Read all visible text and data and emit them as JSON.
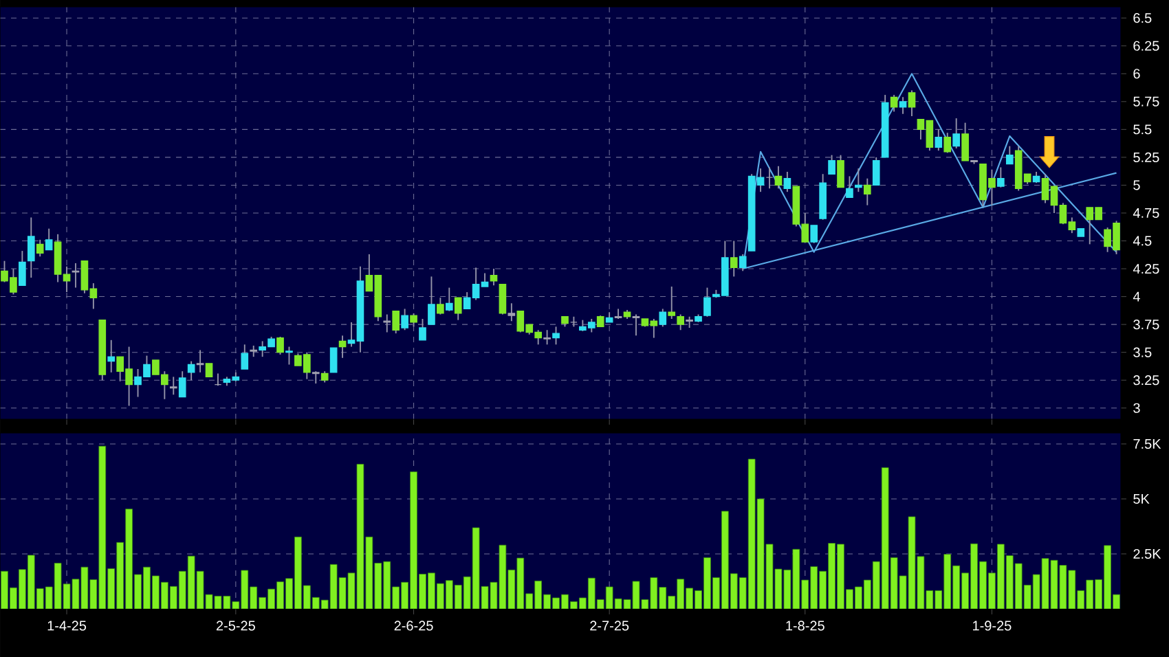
{
  "chart_data": [
    {
      "type": "candlestick",
      "categories": [
        null,
        null,
        null,
        null,
        null,
        null,
        null,
        null,
        null,
        null,
        null,
        null,
        null,
        null,
        null,
        null,
        null,
        null,
        null,
        null,
        null,
        null,
        null,
        null,
        null,
        null,
        null,
        null,
        null,
        null,
        null,
        null,
        null,
        null,
        null,
        null,
        null,
        null,
        null,
        null,
        null,
        null,
        null,
        null,
        null,
        null,
        null,
        null,
        null,
        null,
        null,
        null,
        null,
        null,
        null,
        null,
        null,
        null,
        null,
        null,
        null,
        null,
        null,
        null,
        null,
        null,
        null,
        null,
        null,
        null,
        null,
        null,
        null,
        null,
        null,
        null,
        null,
        null,
        null,
        null,
        null,
        null,
        null,
        null,
        null,
        null,
        null,
        null,
        null,
        null,
        null,
        null,
        null,
        null,
        null,
        null,
        null,
        null,
        null,
        null,
        null,
        null,
        null,
        null,
        null,
        null,
        null,
        null,
        null,
        null,
        null,
        null,
        null,
        null,
        null,
        null,
        null,
        null,
        null,
        null,
        null,
        null,
        null,
        null,
        null,
        null
      ],
      "ohlc": [
        [
          4.23,
          4.32,
          4.13,
          4.14
        ],
        [
          4.17,
          4.25,
          4.02,
          4.04
        ],
        [
          4.1,
          4.41,
          4.1,
          4.31
        ],
        [
          4.32,
          4.71,
          4.17,
          4.54
        ],
        [
          4.47,
          4.51,
          4.36,
          4.39
        ],
        [
          4.42,
          4.61,
          4.42,
          4.51
        ],
        [
          4.49,
          4.56,
          4.13,
          4.2
        ],
        [
          4.2,
          4.27,
          4.04,
          4.14
        ],
        [
          4.23,
          4.3,
          4.08,
          4.22
        ],
        [
          4.32,
          4.32,
          4.03,
          4.06
        ],
        [
          4.07,
          4.12,
          3.89,
          3.99
        ],
        [
          3.79,
          3.79,
          3.25,
          3.3
        ],
        [
          3.42,
          3.61,
          3.32,
          3.46
        ],
        [
          3.46,
          3.46,
          3.24,
          3.33
        ],
        [
          3.35,
          3.55,
          3.02,
          3.21
        ],
        [
          3.21,
          3.35,
          3.1,
          3.28
        ],
        [
          3.28,
          3.47,
          3.28,
          3.39
        ],
        [
          3.43,
          3.43,
          3.3,
          3.3
        ],
        [
          3.3,
          3.33,
          3.08,
          3.21
        ],
        [
          3.19,
          3.28,
          3.12,
          3.18
        ],
        [
          3.1,
          3.33,
          3.1,
          3.27
        ],
        [
          3.32,
          3.42,
          3.25,
          3.39
        ],
        [
          3.4,
          3.52,
          3.32,
          3.39
        ],
        [
          3.4,
          3.4,
          3.28,
          3.28
        ],
        [
          3.21,
          3.31,
          3.2,
          3.21
        ],
        [
          3.23,
          3.28,
          3.2,
          3.26
        ],
        [
          3.25,
          3.32,
          3.24,
          3.28
        ],
        [
          3.35,
          3.57,
          3.35,
          3.49
        ],
        [
          3.52,
          3.56,
          3.46,
          3.51
        ],
        [
          3.52,
          3.6,
          3.46,
          3.55
        ],
        [
          3.55,
          3.64,
          3.55,
          3.62
        ],
        [
          3.63,
          3.64,
          3.48,
          3.5
        ],
        [
          3.5,
          3.55,
          3.39,
          3.51
        ],
        [
          3.47,
          3.49,
          3.38,
          3.38
        ],
        [
          3.48,
          3.5,
          3.26,
          3.32
        ],
        [
          3.32,
          3.33,
          3.22,
          3.31
        ],
        [
          3.31,
          3.33,
          3.23,
          3.25
        ],
        [
          3.32,
          3.54,
          3.32,
          3.54
        ],
        [
          3.6,
          3.65,
          3.45,
          3.55
        ],
        [
          3.58,
          3.77,
          3.55,
          3.61
        ],
        [
          3.6,
          4.27,
          3.5,
          4.14
        ],
        [
          4.19,
          4.38,
          4.05,
          4.05
        ],
        [
          4.19,
          4.19,
          3.78,
          3.82
        ],
        [
          3.78,
          3.84,
          3.68,
          3.77
        ],
        [
          3.87,
          3.87,
          3.67,
          3.7
        ],
        [
          3.72,
          3.89,
          3.7,
          3.83
        ],
        [
          3.83,
          3.85,
          3.73,
          3.77
        ],
        [
          3.61,
          3.8,
          3.61,
          3.72
        ],
        [
          3.75,
          4.18,
          3.75,
          3.93
        ],
        [
          3.93,
          3.99,
          3.84,
          3.85
        ],
        [
          3.88,
          4.08,
          3.87,
          3.94
        ],
        [
          3.99,
          3.99,
          3.79,
          3.85
        ],
        [
          3.89,
          4.04,
          3.89,
          3.99
        ],
        [
          3.99,
          4.26,
          3.97,
          4.11
        ],
        [
          4.09,
          4.21,
          4.09,
          4.13
        ],
        [
          4.19,
          4.25,
          4.1,
          4.14
        ],
        [
          4.11,
          4.11,
          3.84,
          3.85
        ],
        [
          3.85,
          3.94,
          3.78,
          3.83
        ],
        [
          3.87,
          3.87,
          3.68,
          3.69
        ],
        [
          3.75,
          3.75,
          3.66,
          3.68
        ],
        [
          3.68,
          3.7,
          3.57,
          3.63
        ],
        [
          3.63,
          3.7,
          3.57,
          3.62
        ],
        [
          3.63,
          3.73,
          3.57,
          3.67
        ],
        [
          3.82,
          3.82,
          3.73,
          3.76
        ],
        [
          3.77,
          3.82,
          3.73,
          3.77
        ],
        [
          3.7,
          3.79,
          3.69,
          3.73
        ],
        [
          3.72,
          3.8,
          3.68,
          3.77
        ],
        [
          3.82,
          3.83,
          3.73,
          3.73
        ],
        [
          3.77,
          3.86,
          3.77,
          3.81
        ],
        [
          3.82,
          3.89,
          3.8,
          3.81
        ],
        [
          3.86,
          3.88,
          3.8,
          3.82
        ],
        [
          3.82,
          3.84,
          3.65,
          3.81
        ],
        [
          3.8,
          3.8,
          3.73,
          3.74
        ],
        [
          3.78,
          3.8,
          3.63,
          3.74
        ],
        [
          3.75,
          3.89,
          3.73,
          3.86
        ],
        [
          3.86,
          4.09,
          3.8,
          3.83
        ],
        [
          3.82,
          3.84,
          3.7,
          3.75
        ],
        [
          3.79,
          3.82,
          3.72,
          3.78
        ],
        [
          3.78,
          3.84,
          3.77,
          3.82
        ],
        [
          3.83,
          4.08,
          3.82,
          3.99
        ],
        [
          4.0,
          4.06,
          3.99,
          4.02
        ],
        [
          4.01,
          4.5,
          4.01,
          4.35
        ],
        [
          4.35,
          4.5,
          4.18,
          4.26
        ],
        [
          4.26,
          4.38,
          4.23,
          4.36
        ],
        [
          4.41,
          5.1,
          4.41,
          5.08
        ],
        [
          5.0,
          5.15,
          4.94,
          5.07
        ],
        [
          5.07,
          5.16,
          4.97,
          5.07
        ],
        [
          5.08,
          5.17,
          4.97,
          5.0
        ],
        [
          4.97,
          5.12,
          4.94,
          5.06
        ],
        [
          4.99,
          4.99,
          4.63,
          4.65
        ],
        [
          4.65,
          4.75,
          4.49,
          4.49
        ],
        [
          4.49,
          4.64,
          4.48,
          4.64
        ],
        [
          4.7,
          5.1,
          4.69,
          5.02
        ],
        [
          5.1,
          5.27,
          5.1,
          5.22
        ],
        [
          5.22,
          5.27,
          4.98,
          4.98
        ],
        [
          4.89,
          5.08,
          4.89,
          4.97
        ],
        [
          4.98,
          5.15,
          4.94,
          5.0
        ],
        [
          5.0,
          5.06,
          4.82,
          4.92
        ],
        [
          5.0,
          5.25,
          5.0,
          5.22
        ],
        [
          5.25,
          5.81,
          5.25,
          5.74
        ],
        [
          5.79,
          5.81,
          5.66,
          5.7
        ],
        [
          5.7,
          5.79,
          5.64,
          5.75
        ],
        [
          5.83,
          5.85,
          5.62,
          5.7
        ],
        [
          5.59,
          5.59,
          5.41,
          5.5
        ],
        [
          5.58,
          5.58,
          5.31,
          5.34
        ],
        [
          5.34,
          5.5,
          5.31,
          5.43
        ],
        [
          5.43,
          5.47,
          5.29,
          5.3
        ],
        [
          5.35,
          5.6,
          5.33,
          5.46
        ],
        [
          5.46,
          5.56,
          5.22,
          5.22
        ],
        [
          5.22,
          5.22,
          5.19,
          5.21
        ],
        [
          5.19,
          5.19,
          4.81,
          4.87
        ],
        [
          5.06,
          5.14,
          4.82,
          4.98
        ],
        [
          4.99,
          5.16,
          4.98,
          5.06
        ],
        [
          5.19,
          5.35,
          5.19,
          5.27
        ],
        [
          5.31,
          5.35,
          4.95,
          4.97
        ],
        [
          5.1,
          5.1,
          5.01,
          5.03
        ],
        [
          5.03,
          5.12,
          5.02,
          5.08
        ],
        [
          5.06,
          5.1,
          4.84,
          4.87
        ],
        [
          4.99,
          5.0,
          4.75,
          4.82
        ],
        [
          4.82,
          4.84,
          4.65,
          4.66
        ],
        [
          4.67,
          4.71,
          4.57,
          4.6
        ],
        [
          4.54,
          4.61,
          4.54,
          4.61
        ],
        [
          4.8,
          4.8,
          4.47,
          4.69
        ],
        [
          4.8,
          4.8,
          4.69,
          4.69
        ],
        [
          4.6,
          4.62,
          4.4,
          4.45
        ],
        [
          4.66,
          4.68,
          4.38,
          4.42
        ]
      ],
      "colors": [
        "#80e828",
        "#80e828",
        "#30e0f0",
        "#30e0f0",
        "#80e828",
        "#30e0f0",
        "#80e828",
        "#80e828",
        "#a0a0b0",
        "#80e828",
        "#80e828",
        "#80e828",
        "#30e0f0",
        "#80e828",
        "#80e828",
        "#30e0f0",
        "#30e0f0",
        "#80e828",
        "#80e828",
        "#a0a0b0",
        "#30e0f0",
        "#30e0f0",
        "#a0a0b0",
        "#80e828",
        "#a0a0b0",
        "#30e0f0",
        "#30e0f0",
        "#30e0f0",
        "#a0a0b0",
        "#30e0f0",
        "#30e0f0",
        "#80e828",
        "#30e0f0",
        "#80e828",
        "#80e828",
        "#a0a0b0",
        "#80e828",
        "#30e0f0",
        "#80e828",
        "#30e0f0",
        "#30e0f0",
        "#80e828",
        "#80e828",
        "#a0a0b0",
        "#80e828",
        "#30e0f0",
        "#80e828",
        "#30e0f0",
        "#30e0f0",
        "#80e828",
        "#30e0f0",
        "#80e828",
        "#30e0f0",
        "#30e0f0",
        "#30e0f0",
        "#80e828",
        "#80e828",
        "#a0a0b0",
        "#80e828",
        "#80e828",
        "#80e828",
        "#a0a0b0",
        "#30e0f0",
        "#80e828",
        "#a0a0b0",
        "#30e0f0",
        "#30e0f0",
        "#80e828",
        "#30e0f0",
        "#a0a0b0",
        "#80e828",
        "#a0a0b0",
        "#80e828",
        "#80e828",
        "#30e0f0",
        "#80e828",
        "#80e828",
        "#a0a0b0",
        "#30e0f0",
        "#30e0f0",
        "#30e0f0",
        "#30e0f0",
        "#80e828",
        "#30e0f0",
        "#30e0f0",
        "#30e0f0",
        "#a0a0b0",
        "#80e828",
        "#30e0f0",
        "#80e828",
        "#80e828",
        "#30e0f0",
        "#30e0f0",
        "#30e0f0",
        "#80e828",
        "#30e0f0",
        "#30e0f0",
        "#80e828",
        "#30e0f0",
        "#30e0f0",
        "#80e828",
        "#30e0f0",
        "#80e828",
        "#80e828",
        "#80e828",
        "#30e0f0",
        "#80e828",
        "#30e0f0",
        "#80e828",
        "#a0a0b0",
        "#80e828",
        "#80e828",
        "#30e0f0",
        "#30e0f0",
        "#80e828",
        "#80e828",
        "#30e0f0",
        "#80e828",
        "#80e828",
        "#80e828",
        "#80e828",
        "#30e0f0",
        "#80e828",
        "#80e828",
        "#80e828",
        "#80e828"
      ],
      "series": [
        {
          "type": "line",
          "color": "#5aaae6",
          "values": [
            null,
            null,
            null,
            null,
            null,
            null,
            null,
            null,
            null,
            null,
            null,
            null,
            null,
            null,
            null,
            null,
            null,
            null,
            null,
            null,
            null,
            null,
            null,
            null,
            null,
            null,
            null,
            null,
            null,
            null,
            null,
            null,
            null,
            null,
            null,
            null,
            null,
            null,
            null,
            null,
            null,
            null,
            null,
            null,
            null,
            null,
            null,
            null,
            null,
            null,
            null,
            null,
            null,
            null,
            null,
            null,
            null,
            null,
            null,
            null,
            null,
            null,
            null,
            null,
            null,
            null,
            null,
            null,
            null,
            null,
            null,
            null,
            null,
            null,
            null,
            null,
            null,
            null,
            null,
            null,
            null,
            null,
            null,
            4.25,
            null,
            5.3,
            null,
            null,
            null,
            null,
            null,
            4.4,
            null,
            null,
            null,
            null,
            null,
            null,
            null,
            null,
            null,
            null,
            6.0,
            null,
            null,
            null,
            null,
            null,
            null,
            null,
            4.8,
            null,
            null,
            5.44,
            null,
            null,
            null,
            null,
            null,
            null,
            null,
            null,
            null,
            null,
            null,
            4.4
          ]
        },
        {
          "type": "line",
          "color": "#5aaae6",
          "values": [
            null,
            null,
            null,
            null,
            null,
            null,
            null,
            null,
            null,
            null,
            null,
            null,
            null,
            null,
            null,
            null,
            null,
            null,
            null,
            null,
            null,
            null,
            null,
            null,
            null,
            null,
            null,
            null,
            null,
            null,
            null,
            null,
            null,
            null,
            null,
            null,
            null,
            null,
            null,
            null,
            null,
            null,
            null,
            null,
            null,
            null,
            null,
            null,
            null,
            null,
            null,
            null,
            null,
            null,
            null,
            null,
            null,
            null,
            null,
            null,
            null,
            null,
            null,
            null,
            null,
            null,
            null,
            null,
            null,
            null,
            null,
            null,
            null,
            null,
            null,
            null,
            null,
            null,
            null,
            null,
            null,
            null,
            null,
            4.25,
            null,
            null,
            null,
            null,
            null,
            null,
            null,
            null,
            null,
            null,
            null,
            null,
            null,
            null,
            null,
            null,
            null,
            null,
            null,
            null,
            null,
            null,
            null,
            null,
            null,
            null,
            null,
            null,
            null,
            null,
            null,
            null,
            null,
            null,
            null,
            null,
            null,
            null,
            null,
            null,
            null,
            5.11
          ]
        }
      ],
      "ylim": [
        2.9,
        6.6
      ],
      "yticks": [
        3,
        3.25,
        3.5,
        3.75,
        4,
        4.25,
        4.5,
        4.75,
        5,
        5.25,
        5.5,
        5.75,
        6,
        6.25,
        6.5
      ],
      "grid": true,
      "tick_labels": "y"
    },
    {
      "type": "bar",
      "categories": [
        null,
        null,
        null,
        null,
        null,
        null,
        null,
        "1-4-25",
        null,
        null,
        null,
        null,
        null,
        null,
        null,
        null,
        null,
        null,
        null,
        null,
        null,
        null,
        null,
        null,
        null,
        null,
        "2-5-25",
        null,
        null,
        null,
        null,
        null,
        null,
        null,
        null,
        null,
        null,
        null,
        null,
        null,
        null,
        null,
        null,
        null,
        null,
        null,
        "2-6-25",
        null,
        null,
        null,
        null,
        null,
        null,
        null,
        null,
        null,
        null,
        null,
        null,
        null,
        null,
        null,
        null,
        null,
        null,
        null,
        null,
        null,
        "2-7-25",
        null,
        null,
        null,
        null,
        null,
        null,
        null,
        null,
        null,
        null,
        null,
        null,
        null,
        null,
        null,
        null,
        null,
        null,
        null,
        null,
        null,
        "1-8-25",
        null,
        null,
        null,
        null,
        null,
        null,
        null,
        null,
        null,
        null,
        null,
        null,
        null,
        null,
        null,
        null,
        null,
        null,
        null,
        null,
        "1-9-25",
        null,
        null,
        null,
        null,
        null,
        null,
        null,
        null,
        null,
        null,
        null,
        null,
        null,
        null
      ],
      "values": [
        1710,
        960,
        1790,
        2440,
        920,
        1000,
        2080,
        1130,
        1350,
        1900,
        1330,
        7400,
        1830,
        3020,
        4540,
        1560,
        1900,
        1500,
        1210,
        1020,
        1710,
        2400,
        1710,
        650,
        580,
        580,
        330,
        1750,
        1000,
        520,
        900,
        1230,
        1380,
        3270,
        1060,
        520,
        400,
        2020,
        1420,
        1630,
        6580,
        3270,
        2080,
        2150,
        1000,
        1210,
        6230,
        1580,
        1630,
        1150,
        1290,
        1080,
        1460,
        3690,
        1020,
        1210,
        2900,
        1770,
        2310,
        690,
        1270,
        650,
        500,
        650,
        330,
        500,
        1400,
        420,
        1000,
        460,
        420,
        1250,
        420,
        1420,
        980,
        580,
        1350,
        940,
        830,
        2330,
        1420,
        4440,
        1600,
        1420,
        6810,
        5000,
        2940,
        1810,
        1770,
        2710,
        1310,
        1920,
        1710,
        2980,
        2940,
        880,
        1000,
        1310,
        2150,
        6420,
        2330,
        1500,
        4190,
        2380,
        830,
        830,
        2480,
        1960,
        1630,
        2960,
        2150,
        1630,
        2940,
        2420,
        2060,
        1080,
        1560,
        2290,
        2210,
        1980,
        1750,
        830,
        1310,
        1330,
        2880,
        650
      ],
      "color": "#80f020",
      "ylim": [
        0,
        8000
      ],
      "yticks": [
        {
          "value": 2500,
          "label": "2.5K"
        },
        {
          "value": 5000,
          "label": "5K"
        },
        {
          "value": 7500,
          "label": "7.5K"
        }
      ],
      "grid": true
    }
  ]
}
